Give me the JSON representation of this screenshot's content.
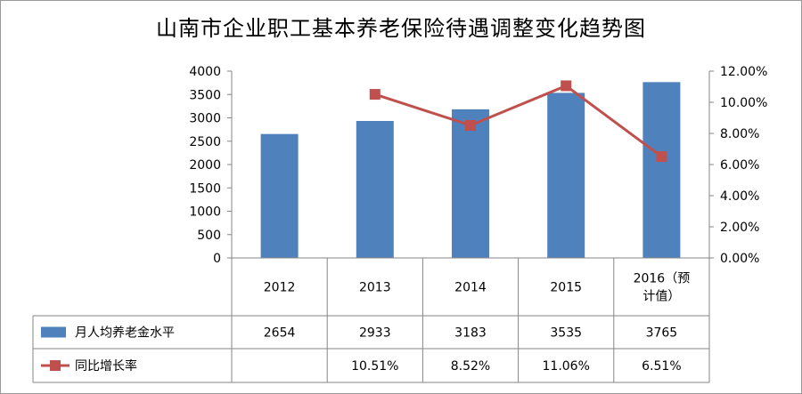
{
  "chart_data": {
    "type": "bar",
    "title": "山南市企业职工基本养老保险待遇调整变化趋势图",
    "categories": [
      "2012",
      "2013",
      "2014",
      "2015",
      "2016（预计值）"
    ],
    "category_lines": [
      [
        "2012"
      ],
      [
        "2013"
      ],
      [
        "2014"
      ],
      [
        "2015"
      ],
      [
        "2016（预",
        "计值）"
      ]
    ],
    "series": [
      {
        "name": "月人均养老金水平",
        "type": "bar",
        "axis": "left",
        "color": "#4f81bd",
        "values": [
          2654,
          2933,
          3183,
          3535,
          3765
        ],
        "display": [
          "2654",
          "2933",
          "3183",
          "3535",
          "3765"
        ]
      },
      {
        "name": "同比增长率",
        "type": "line",
        "axis": "right",
        "color": "#c0504d",
        "values": [
          null,
          10.51,
          8.52,
          11.06,
          6.51
        ],
        "display": [
          "",
          "10.51%",
          "8.52%",
          "11.06%",
          "6.51%"
        ]
      }
    ],
    "ylim_left": [
      0,
      4000
    ],
    "yticks_left": [
      "0",
      "500",
      "1000",
      "1500",
      "2000",
      "2500",
      "3000",
      "3500",
      "4000"
    ],
    "ylim_right": [
      0,
      12
    ],
    "yticks_right": [
      "0.00%",
      "2.00%",
      "4.00%",
      "6.00%",
      "8.00%",
      "10.00%",
      "12.00%"
    ],
    "grid": false,
    "legend": "data-table"
  }
}
